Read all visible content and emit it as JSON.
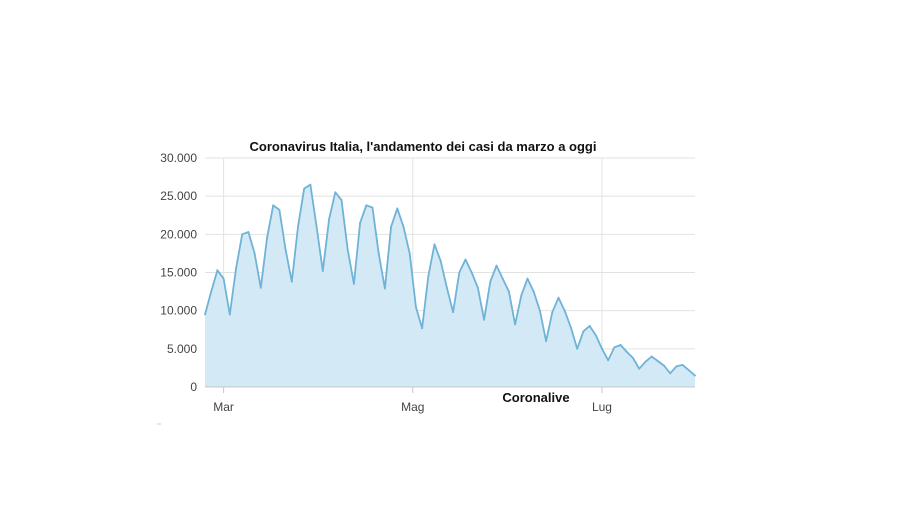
{
  "chart_data": {
    "type": "area",
    "title": "Coronavirus Italia, l'andamento dei casi da marzo a oggi",
    "watermark": "Coronalive",
    "xlabel": "",
    "ylabel": "",
    "x_range": [
      "2020-02-24",
      "2020-07-31"
    ],
    "ylim": [
      0,
      30000
    ],
    "y_ticks": [
      0,
      5000,
      10000,
      15000,
      20000,
      25000,
      30000
    ],
    "y_tick_labels": [
      "0",
      "5.000",
      "10.000",
      "15.000",
      "20.000",
      "25.000",
      "30.000"
    ],
    "x_ticks": [
      {
        "label": "Mar",
        "date": "2020-03-01"
      },
      {
        "label": "Mag",
        "date": "2020-05-01"
      },
      {
        "label": "Lug",
        "date": "2020-07-01"
      }
    ],
    "grid": true,
    "colors": {
      "line": "#6fb3d6",
      "fill": "#d4e9f6",
      "grid": "#e2e2e2",
      "axis": "#c8c8c8"
    },
    "series": [
      {
        "points": [
          [
            "2020-02-24",
            9500
          ],
          [
            "2020-02-26",
            12500
          ],
          [
            "2020-02-28",
            15300
          ],
          [
            "2020-03-01",
            14200
          ],
          [
            "2020-03-03",
            9500
          ],
          [
            "2020-03-05",
            15500
          ],
          [
            "2020-03-07",
            20000
          ],
          [
            "2020-03-09",
            20300
          ],
          [
            "2020-03-11",
            17500
          ],
          [
            "2020-03-13",
            13000
          ],
          [
            "2020-03-15",
            19500
          ],
          [
            "2020-03-17",
            23800
          ],
          [
            "2020-03-19",
            23200
          ],
          [
            "2020-03-21",
            18000
          ],
          [
            "2020-03-23",
            13800
          ],
          [
            "2020-03-25",
            21000
          ],
          [
            "2020-03-27",
            26000
          ],
          [
            "2020-03-29",
            26500
          ],
          [
            "2020-03-31",
            21000
          ],
          [
            "2020-04-02",
            15200
          ],
          [
            "2020-04-04",
            22000
          ],
          [
            "2020-04-06",
            25500
          ],
          [
            "2020-04-08",
            24500
          ],
          [
            "2020-04-10",
            18000
          ],
          [
            "2020-04-12",
            13500
          ],
          [
            "2020-04-14",
            21500
          ],
          [
            "2020-04-16",
            23800
          ],
          [
            "2020-04-18",
            23500
          ],
          [
            "2020-04-20",
            17500
          ],
          [
            "2020-04-22",
            12900
          ],
          [
            "2020-04-24",
            21000
          ],
          [
            "2020-04-26",
            23400
          ],
          [
            "2020-04-28",
            21000
          ],
          [
            "2020-04-30",
            17500
          ],
          [
            "2020-05-02",
            10500
          ],
          [
            "2020-05-04",
            7700
          ],
          [
            "2020-05-06",
            14500
          ],
          [
            "2020-05-08",
            18700
          ],
          [
            "2020-05-10",
            16500
          ],
          [
            "2020-05-12",
            13000
          ],
          [
            "2020-05-14",
            9800
          ],
          [
            "2020-05-16",
            15000
          ],
          [
            "2020-05-18",
            16700
          ],
          [
            "2020-05-20",
            15000
          ],
          [
            "2020-05-22",
            13000
          ],
          [
            "2020-05-24",
            8800
          ],
          [
            "2020-05-26",
            13800
          ],
          [
            "2020-05-28",
            15900
          ],
          [
            "2020-05-30",
            14200
          ],
          [
            "2020-06-01",
            12500
          ],
          [
            "2020-06-03",
            8200
          ],
          [
            "2020-06-05",
            12000
          ],
          [
            "2020-06-07",
            14200
          ],
          [
            "2020-06-09",
            12500
          ],
          [
            "2020-06-11",
            10000
          ],
          [
            "2020-06-13",
            6000
          ],
          [
            "2020-06-15",
            9800
          ],
          [
            "2020-06-17",
            11700
          ],
          [
            "2020-06-19",
            10000
          ],
          [
            "2020-06-21",
            7800
          ],
          [
            "2020-06-23",
            5000
          ],
          [
            "2020-06-25",
            7300
          ],
          [
            "2020-06-27",
            8000
          ],
          [
            "2020-06-29",
            6800
          ],
          [
            "2020-07-01",
            5000
          ],
          [
            "2020-07-03",
            3500
          ],
          [
            "2020-07-05",
            5200
          ],
          [
            "2020-07-07",
            5500
          ],
          [
            "2020-07-09",
            4600
          ],
          [
            "2020-07-11",
            3800
          ],
          [
            "2020-07-13",
            2400
          ],
          [
            "2020-07-15",
            3300
          ],
          [
            "2020-07-17",
            4000
          ],
          [
            "2020-07-19",
            3400
          ],
          [
            "2020-07-21",
            2800
          ],
          [
            "2020-07-23",
            1800
          ],
          [
            "2020-07-25",
            2700
          ],
          [
            "2020-07-27",
            2900
          ],
          [
            "2020-07-29",
            2200
          ],
          [
            "2020-07-31",
            1500
          ]
        ]
      }
    ]
  }
}
